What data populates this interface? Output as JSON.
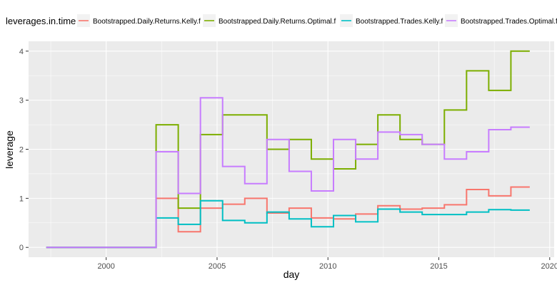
{
  "chart_data": {
    "type": "line",
    "step": true,
    "xlabel": "day",
    "ylabel": "leverage",
    "legend_title": "leverages.in.time",
    "legend_position": "top",
    "xlim": [
      1996.5,
      2020.2
    ],
    "ylim": [
      -0.2,
      4.2
    ],
    "x_ticks": [
      2000,
      2005,
      2010,
      2015,
      2020
    ],
    "y_ticks": [
      0,
      1,
      2,
      3,
      4
    ],
    "grid": true,
    "panel_background": "#ebebeb",
    "series": [
      {
        "name": "Bootstrapped.Daily.Returns.Kelly.f",
        "color": "#F8766D",
        "x": [
          1997.3,
          2002.25,
          2003.25,
          2004.25,
          2005.25,
          2006.25,
          2007.25,
          2008.25,
          2009.25,
          2010.25,
          2011.25,
          2012.25,
          2013.25,
          2014.25,
          2015.25,
          2016.25,
          2017.25,
          2018.25,
          2019.1
        ],
        "y": [
          0,
          1.0,
          0.32,
          0.8,
          0.88,
          1.0,
          0.7,
          0.8,
          0.6,
          0.58,
          0.68,
          0.85,
          0.78,
          0.8,
          0.87,
          1.18,
          1.05,
          1.23,
          1.23
        ]
      },
      {
        "name": "Bootstrapped.Daily.Returns.Optimal.f",
        "color": "#7CAE00",
        "x": [
          1997.3,
          2002.25,
          2003.25,
          2004.25,
          2005.25,
          2006.25,
          2007.25,
          2008.25,
          2009.25,
          2010.25,
          2011.25,
          2012.25,
          2013.25,
          2014.25,
          2015.25,
          2016.25,
          2017.25,
          2018.25,
          2019.1
        ],
        "y": [
          0,
          2.5,
          0.8,
          2.3,
          2.7,
          2.7,
          2.0,
          2.2,
          1.8,
          1.6,
          2.1,
          2.7,
          2.2,
          2.1,
          2.8,
          3.6,
          3.2,
          4.0,
          4.0
        ]
      },
      {
        "name": "Bootstrapped.Trades.Kelly.f",
        "color": "#00BFC4",
        "x": [
          1997.3,
          2002.25,
          2003.25,
          2004.25,
          2005.25,
          2006.25,
          2007.25,
          2008.25,
          2009.25,
          2010.25,
          2011.25,
          2012.25,
          2013.25,
          2014.25,
          2015.25,
          2016.25,
          2017.25,
          2018.25,
          2019.1
        ],
        "y": [
          0,
          0.6,
          0.47,
          0.95,
          0.55,
          0.5,
          0.72,
          0.58,
          0.42,
          0.65,
          0.52,
          0.78,
          0.72,
          0.67,
          0.67,
          0.72,
          0.77,
          0.76,
          0.76
        ]
      },
      {
        "name": "Bootstrapped.Trades.Optimal.f",
        "color": "#C77CFF",
        "x": [
          1997.3,
          2002.25,
          2003.25,
          2004.25,
          2005.25,
          2006.25,
          2007.25,
          2008.25,
          2009.25,
          2010.25,
          2011.25,
          2012.25,
          2013.25,
          2014.25,
          2015.25,
          2016.25,
          2017.25,
          2018.25,
          2019.1
        ],
        "y": [
          0,
          1.95,
          1.1,
          3.05,
          1.65,
          1.3,
          2.2,
          1.55,
          1.15,
          2.2,
          1.8,
          2.35,
          2.3,
          2.1,
          1.8,
          1.95,
          2.4,
          2.45,
          2.45
        ]
      }
    ]
  }
}
